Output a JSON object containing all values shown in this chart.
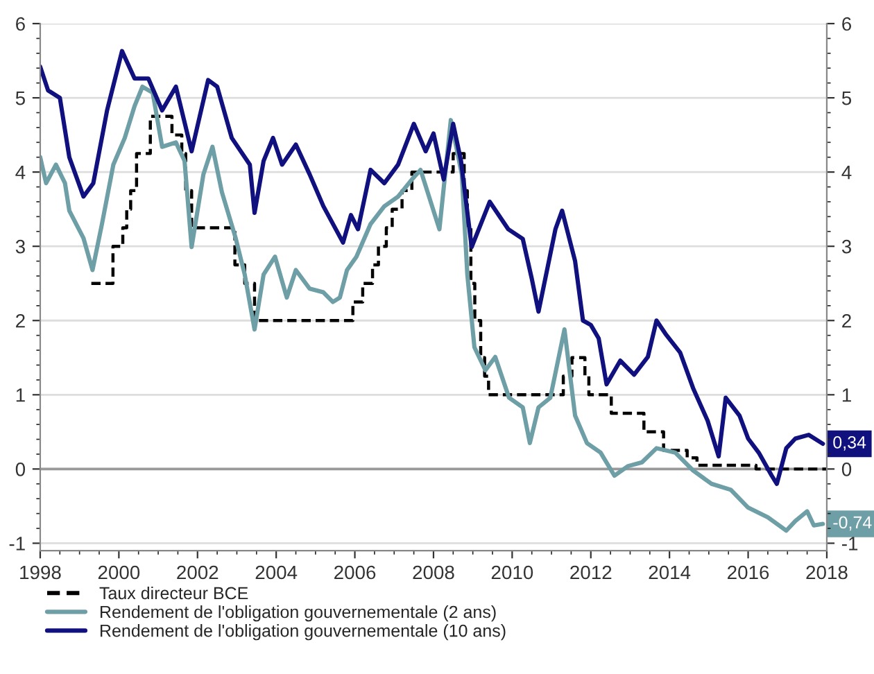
{
  "chart_data": {
    "type": "line",
    "xlim": [
      1998,
      2018
    ],
    "xticks": [
      1998,
      2000,
      2002,
      2004,
      2006,
      2008,
      2010,
      2012,
      2014,
      2016,
      2018
    ],
    "ylim": [
      -1.1,
      6
    ],
    "yticks": [
      -1,
      0,
      1,
      2,
      3,
      4,
      5,
      6
    ],
    "y2lim": [
      -1.1,
      6
    ],
    "y2ticks": [
      -1,
      0,
      1,
      2,
      3,
      4,
      5,
      6
    ],
    "grid": "y",
    "legend": "bottom",
    "ref_lines": [
      {
        "axis": "y",
        "value": 0,
        "color": "#999999"
      }
    ],
    "annotations": [
      {
        "text": "0,34",
        "x": 2018,
        "y": 0.34
      },
      {
        "text": "-0,74",
        "x": 2018,
        "y": -0.74
      }
    ],
    "series": [
      {
        "name": "Taux directeur BCE",
        "type": "step",
        "color": "#000000",
        "line_style": "dashed",
        "x": [
          1999.3,
          1999.85,
          2000.1,
          2000.2,
          2000.3,
          2000.45,
          2000.8,
          2001.35,
          2001.6,
          2001.7,
          2001.85,
          2002.95,
          2003.2,
          2003.45,
          2005.95,
          2006.2,
          2006.45,
          2006.6,
          2006.8,
          2006.95,
          2007.2,
          2007.45,
          2008.5,
          2008.78,
          2008.86,
          2008.95,
          2009.05,
          2009.2,
          2009.3,
          2009.4,
          2011.3,
          2011.52,
          2011.85,
          2011.95,
          2012.52,
          2013.35,
          2013.85,
          2014.45,
          2014.7,
          2016.2,
          2018
        ],
        "values": [
          2.5,
          3.0,
          3.25,
          3.5,
          3.75,
          4.25,
          4.75,
          4.5,
          4.25,
          3.75,
          3.25,
          2.75,
          2.5,
          2.0,
          2.25,
          2.5,
          2.75,
          3.0,
          3.25,
          3.5,
          3.75,
          4.0,
          4.25,
          3.75,
          3.25,
          2.5,
          2.0,
          1.5,
          1.25,
          1.0,
          1.25,
          1.5,
          1.25,
          1.0,
          0.75,
          0.5,
          0.25,
          0.15,
          0.05,
          0.0,
          0.0
        ]
      },
      {
        "name": "Rendement de l'obligation gouvernementale (2 ans)",
        "color": "#6e9ea6",
        "x": [
          1998.0,
          1998.15,
          1998.4,
          1998.63,
          1998.74,
          1999.1,
          1999.33,
          1999.57,
          1999.86,
          2000.15,
          2000.4,
          2000.6,
          2000.86,
          2001.1,
          2001.45,
          2001.67,
          2001.85,
          2002.15,
          2002.38,
          2002.62,
          2002.97,
          2003.2,
          2003.45,
          2003.68,
          2003.97,
          2004.27,
          2004.5,
          2004.85,
          2005.2,
          2005.44,
          2005.62,
          2005.8,
          2006.04,
          2006.4,
          2006.75,
          2007.1,
          2007.45,
          2007.67,
          2008.15,
          2008.44,
          2008.72,
          2008.86,
          2009.04,
          2009.32,
          2009.57,
          2009.92,
          2010.27,
          2010.45,
          2010.67,
          2010.97,
          2011.33,
          2011.6,
          2011.9,
          2012.25,
          2012.6,
          2012.95,
          2013.3,
          2013.67,
          2014.15,
          2014.6,
          2015.07,
          2015.56,
          2016.0,
          2016.5,
          2016.97,
          2017.2,
          2017.5,
          2017.67,
          2017.9
        ],
        "values": [
          4.2,
          3.85,
          4.1,
          3.85,
          3.48,
          3.11,
          2.68,
          3.3,
          4.1,
          4.46,
          4.89,
          5.15,
          5.07,
          4.34,
          4.4,
          4.15,
          2.99,
          3.97,
          4.34,
          3.73,
          3.11,
          2.62,
          1.88,
          2.62,
          2.86,
          2.31,
          2.68,
          2.43,
          2.38,
          2.25,
          2.31,
          2.68,
          2.86,
          3.3,
          3.54,
          3.67,
          3.9,
          4.03,
          3.23,
          4.7,
          3.97,
          2.62,
          1.64,
          1.33,
          1.51,
          0.96,
          0.83,
          0.35,
          0.83,
          0.96,
          1.88,
          0.72,
          0.35,
          0.22,
          -0.09,
          0.04,
          0.09,
          0.28,
          0.22,
          -0.02,
          -0.2,
          -0.28,
          -0.52,
          -0.65,
          -0.83,
          -0.7,
          -0.57,
          -0.76,
          -0.74
        ]
      },
      {
        "name": "Rendement de l'obligation gouvernementale (10 ans)",
        "color": "#10107e",
        "x": [
          1998.0,
          1998.2,
          1998.5,
          1998.74,
          1999.1,
          1999.35,
          1999.7,
          2000.08,
          2000.4,
          2000.75,
          2001.1,
          2001.45,
          2001.85,
          2002.27,
          2002.5,
          2002.87,
          2003.33,
          2003.45,
          2003.68,
          2003.92,
          2004.15,
          2004.5,
          2004.85,
          2005.2,
          2005.7,
          2005.9,
          2006.08,
          2006.4,
          2006.75,
          2007.1,
          2007.5,
          2007.8,
          2008.0,
          2008.26,
          2008.5,
          2008.7,
          2008.97,
          2009.43,
          2009.9,
          2010.27,
          2010.5,
          2010.67,
          2011.1,
          2011.27,
          2011.6,
          2011.8,
          2012.0,
          2012.2,
          2012.4,
          2012.75,
          2013.1,
          2013.45,
          2013.67,
          2013.9,
          2014.27,
          2014.6,
          2014.97,
          2015.25,
          2015.43,
          2015.78,
          2016.0,
          2016.27,
          2016.6,
          2016.73,
          2016.97,
          2017.2,
          2017.54,
          2017.9
        ],
        "values": [
          5.42,
          5.1,
          5.0,
          4.2,
          3.67,
          3.85,
          4.83,
          5.63,
          5.26,
          5.26,
          4.83,
          5.15,
          4.28,
          5.24,
          5.15,
          4.46,
          4.1,
          3.45,
          4.15,
          4.46,
          4.1,
          4.37,
          3.97,
          3.54,
          3.05,
          3.42,
          3.23,
          4.03,
          3.85,
          4.1,
          4.65,
          4.28,
          4.52,
          3.9,
          4.65,
          4.15,
          2.99,
          3.6,
          3.23,
          3.1,
          2.56,
          2.12,
          3.23,
          3.48,
          2.8,
          2.0,
          1.94,
          1.76,
          1.14,
          1.46,
          1.27,
          1.51,
          2.0,
          1.82,
          1.57,
          1.09,
          0.65,
          0.17,
          0.96,
          0.72,
          0.41,
          0.22,
          -0.09,
          -0.2,
          0.28,
          0.41,
          0.46,
          0.34
        ]
      }
    ]
  }
}
